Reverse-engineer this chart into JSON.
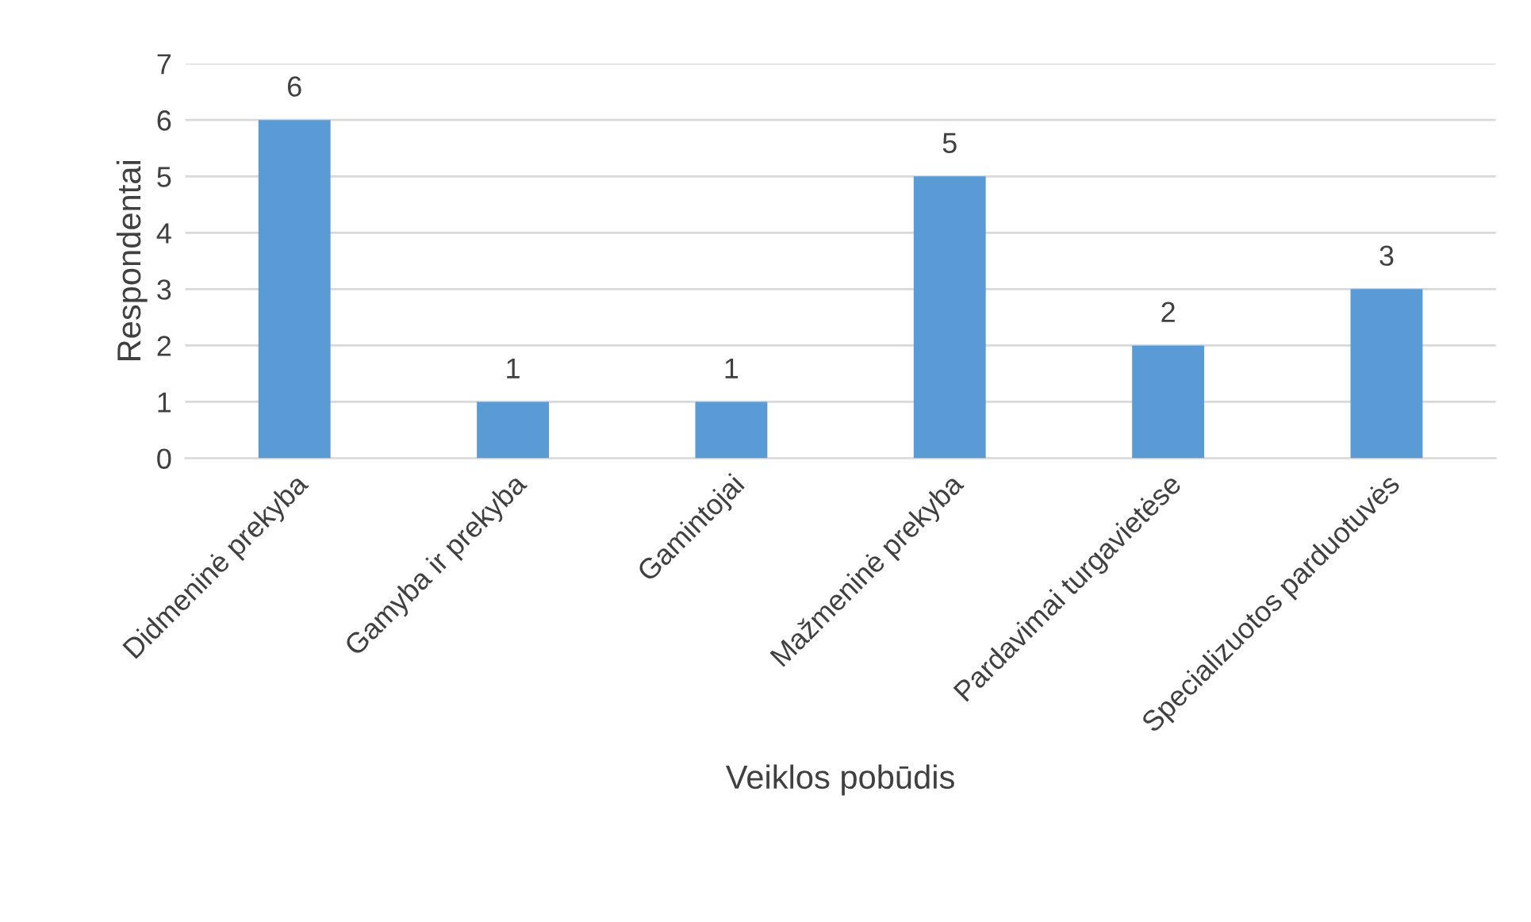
{
  "chart_data": {
    "type": "bar",
    "xlabel": "Veiklos pobūdis",
    "ylabel": "Respondentai",
    "categories": [
      "Didmeninė prekyba",
      "Gamyba ir prekyba",
      "Gamintojai",
      "Mažmeninė prekyba",
      "Pardavimai turgavietėse",
      "Specializuotos parduotuvės"
    ],
    "values": [
      6,
      1,
      1,
      5,
      2,
      3
    ],
    "color": "#5b9bd5",
    "ylim": [
      0,
      7
    ],
    "yticks": [
      0,
      1,
      2,
      3,
      4,
      5,
      6,
      7
    ],
    "grid": "y",
    "data_labels": true
  }
}
